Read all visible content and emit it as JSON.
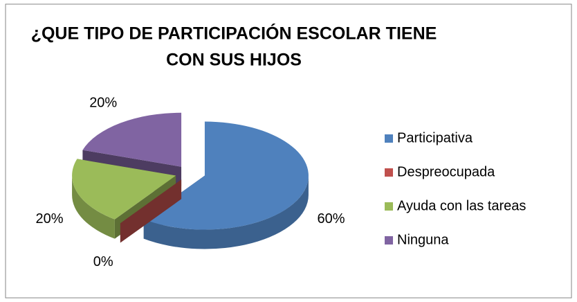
{
  "chart_data": {
    "type": "pie3d",
    "title": [
      "¿QUE TIPO DE PARTICIPACIÓN  ESCOLAR TIENE",
      "CON SUS HIJOS"
    ],
    "categories": [
      "Participativa",
      "Despreocupada",
      "Ayuda con las tareas",
      "Ninguna"
    ],
    "values": [
      60,
      0,
      20,
      20
    ],
    "value_labels": [
      "60%",
      "0%",
      "20%",
      "20%"
    ],
    "colors": [
      "#4f81bd",
      "#c0504d",
      "#9bbb59",
      "#8064a2"
    ],
    "legend": "right"
  }
}
